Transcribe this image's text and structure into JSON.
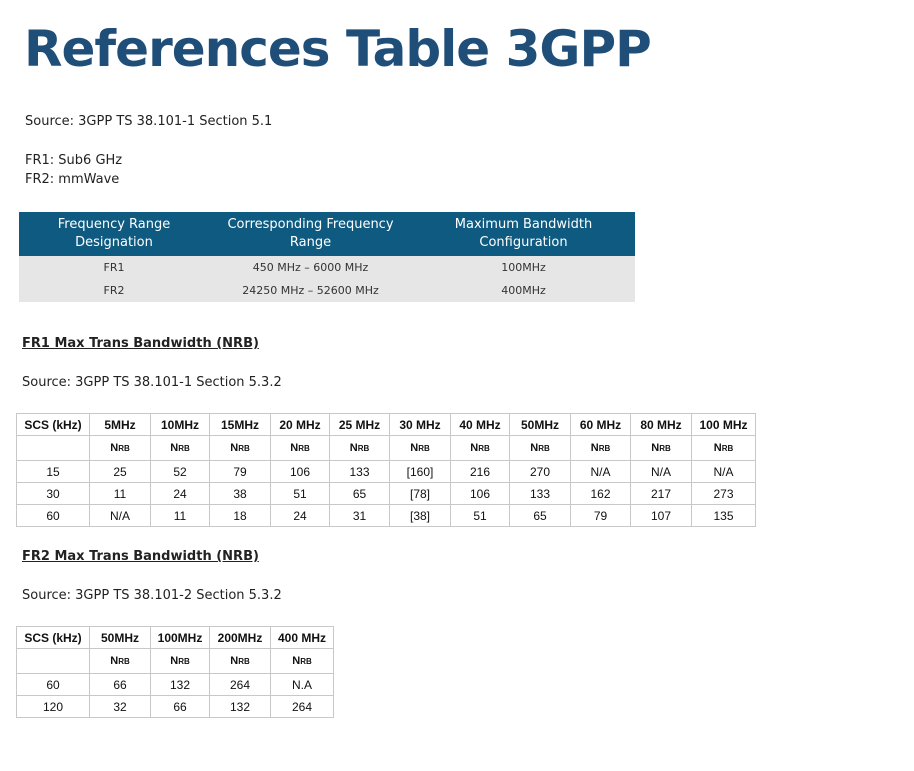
{
  "page": {
    "title": "References Table 3GPP",
    "source1": "Source: 3GPP TS 38.101-1 Section 5.1",
    "fr1_label": "FR1: Sub6 GHz",
    "fr2_label": "FR2: mmWave"
  },
  "freq_table": {
    "headers": [
      "Frequency Range Designation",
      "Corresponding Frequency Range",
      "Maximum Bandwidth Configuration"
    ],
    "rows": [
      [
        "FR1",
        "450 MHz – 6000 MHz",
        "100MHz"
      ],
      [
        "FR2",
        "24250 MHz – 52600 MHz",
        "400MHz"
      ]
    ]
  },
  "fr1_section": {
    "heading": "FR1 Max Trans Bandwidth (NRB)",
    "source": "Source: 3GPP TS 38.101-1 Section 5.3.2",
    "columns": [
      "SCS (kHz)",
      "5MHz",
      "10MHz",
      "15MHz",
      "20 MHz",
      "25 MHz",
      "30 MHz",
      "40 MHz",
      "50MHz",
      "60 MHz",
      "80 MHz",
      "100 MHz"
    ],
    "subheader_main": "N",
    "subheader_sub": "RB",
    "rows": [
      [
        "15",
        "25",
        "52",
        "79",
        "106",
        "133",
        "[160]",
        "216",
        "270",
        "N/A",
        "N/A",
        "N/A"
      ],
      [
        "30",
        "11",
        "24",
        "38",
        "51",
        "65",
        "[78]",
        "106",
        "133",
        "162",
        "217",
        "273"
      ],
      [
        "60",
        "N/A",
        "11",
        "18",
        "24",
        "31",
        "[38]",
        "51",
        "65",
        "79",
        "107",
        "135"
      ]
    ]
  },
  "fr2_section": {
    "heading": "FR2 Max Trans Bandwidth (NRB)",
    "source": "Source: 3GPP TS 38.101-2 Section 5.3.2",
    "columns": [
      "SCS (kHz)",
      "50MHz",
      "100MHz",
      "200MHz",
      "400 MHz"
    ],
    "subheader_main": "N",
    "subheader_sub": "RB",
    "rows": [
      [
        "60",
        "66",
        "132",
        "264",
        "N.A"
      ],
      [
        "120",
        "32",
        "66",
        "132",
        "264"
      ]
    ]
  }
}
